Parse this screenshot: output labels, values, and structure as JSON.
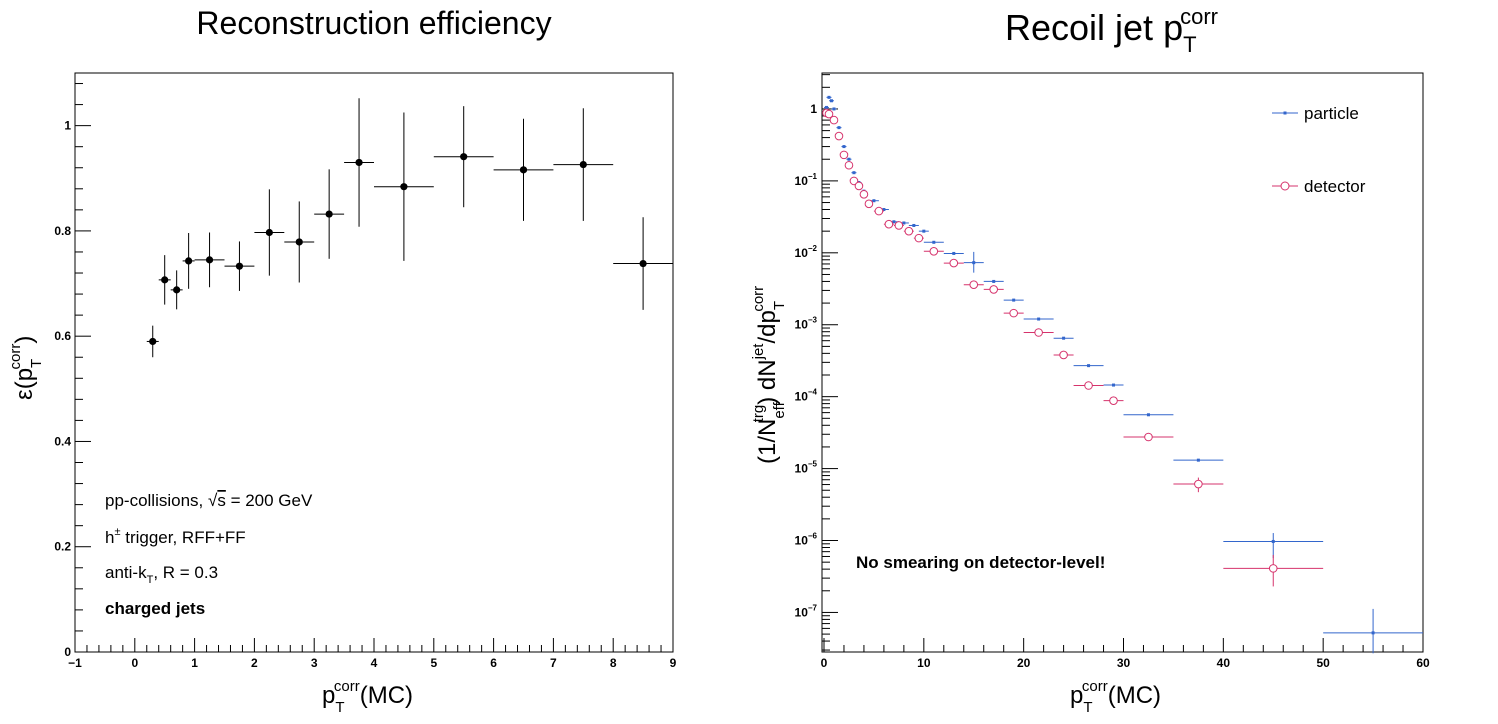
{
  "chart_data": [
    {
      "type": "scatter",
      "title": "Reconstruction efficiency",
      "ylabel": {
        "main": "ε(p",
        "sub": "T",
        "sup": "corr",
        "close": ")"
      },
      "xlabel": {
        "main": "p",
        "sub": "T",
        "sup": "corr",
        "tail": "(MC)"
      },
      "xlim": [
        -1,
        9
      ],
      "ylim": [
        0,
        1.1
      ],
      "xticks": [
        "−1",
        "0",
        "1",
        "2",
        "3",
        "4",
        "5",
        "6",
        "7",
        "8",
        "9"
      ],
      "yticks": [
        "0",
        "0.2",
        "0.4",
        "0.6",
        "0.8",
        "1"
      ],
      "annotations": {
        "line1": {
          "pre": "pp-collisions, ",
          "sqrt": "√",
          "s": "s",
          "post": " = 200 GeV"
        },
        "line2": {
          "h": "h",
          "sup": "±",
          "post": " trigger, RFF+FF"
        },
        "line3": {
          "pre": "anti-k",
          "sub": "T",
          "post": ", R = 0.3"
        },
        "line4": "charged jets"
      },
      "series": [
        {
          "color": "#000000",
          "points": [
            {
              "x": 0.3,
              "y": 0.59,
              "xerr": 0.1,
              "yerr": 0.03
            },
            {
              "x": 0.5,
              "y": 0.707,
              "xerr": 0.1,
              "yerr": 0.047
            },
            {
              "x": 0.7,
              "y": 0.688,
              "xerr": 0.1,
              "yerr": 0.037
            },
            {
              "x": 0.9,
              "y": 0.743,
              "xerr": 0.1,
              "yerr": 0.053
            },
            {
              "x": 1.25,
              "y": 0.745,
              "xerr": 0.25,
              "yerr": 0.052
            },
            {
              "x": 1.75,
              "y": 0.733,
              "xerr": 0.25,
              "yerr": 0.047
            },
            {
              "x": 2.25,
              "y": 0.797,
              "xerr": 0.25,
              "yerr": 0.082
            },
            {
              "x": 2.75,
              "y": 0.779,
              "xerr": 0.25,
              "yerr": 0.077
            },
            {
              "x": 3.25,
              "y": 0.832,
              "xerr": 0.25,
              "yerr": 0.085
            },
            {
              "x": 3.75,
              "y": 0.93,
              "xerr": 0.25,
              "yerr": 0.122
            },
            {
              "x": 4.5,
              "y": 0.884,
              "xerr": 0.5,
              "yerr": 0.141
            },
            {
              "x": 5.5,
              "y": 0.941,
              "xerr": 0.5,
              "yerr": 0.096
            },
            {
              "x": 6.5,
              "y": 0.916,
              "xerr": 0.5,
              "yerr": 0.097
            },
            {
              "x": 7.5,
              "y": 0.926,
              "xerr": 0.5,
              "yerr": 0.107
            },
            {
              "x": 8.5,
              "y": 0.738,
              "xerr": 0.5,
              "yerr": 0.088
            }
          ]
        }
      ]
    },
    {
      "type": "scatter",
      "title": {
        "main": "Recoil jet p",
        "sub": "T",
        "sup": "corr"
      },
      "ylabel": {
        "a": "(1/N",
        "a_sub": "eff",
        "a_sup": "trg",
        "b": ") dN",
        "b_sup": "jet",
        "c": "/dp",
        "c_sub": "T",
        "c_sup": "corr"
      },
      "xlabel": {
        "main": "p",
        "sub": "T",
        "sup": "corr",
        "tail": "(MC)"
      },
      "xlim": [
        -0.2,
        60
      ],
      "ylim_log10": [
        -7.55,
        0.5
      ],
      "log_y": true,
      "xticks": [
        "0",
        "10",
        "20",
        "30",
        "40",
        "50",
        "60"
      ],
      "yticks": [
        {
          "base": "1",
          "exp": ""
        },
        {
          "base": "10",
          "exp": "−1"
        },
        {
          "base": "10",
          "exp": "−2"
        },
        {
          "base": "10",
          "exp": "−3"
        },
        {
          "base": "10",
          "exp": "−4"
        },
        {
          "base": "10",
          "exp": "−5"
        },
        {
          "base": "10",
          "exp": "−6"
        },
        {
          "base": "10",
          "exp": "−7"
        }
      ],
      "legend": {
        "position": "top-right"
      },
      "annotation": "No smearing on detector-level!",
      "series": [
        {
          "name": "particle",
          "color": "#3366cc",
          "marker": "dot",
          "points": [
            {
              "x": 0.25,
              "y": 1.05,
              "xerr": 0.25
            },
            {
              "x": 0.5,
              "y": 1.45,
              "xerr": 0.25
            },
            {
              "x": 0.75,
              "y": 1.3,
              "xerr": 0.25
            },
            {
              "x": 1.0,
              "y": 1.0,
              "xerr": 0.25
            },
            {
              "x": 1.5,
              "y": 0.55,
              "xerr": 0.25
            },
            {
              "x": 2.0,
              "y": 0.3,
              "xerr": 0.25
            },
            {
              "x": 2.5,
              "y": 0.2,
              "xerr": 0.25
            },
            {
              "x": 3.0,
              "y": 0.13,
              "xerr": 0.25
            },
            {
              "x": 3.5,
              "y": 0.095,
              "xerr": 0.25
            },
            {
              "x": 4.0,
              "y": 0.072,
              "xerr": 0.25
            },
            {
              "x": 5.0,
              "y": 0.053,
              "xerr": 0.5
            },
            {
              "x": 6.0,
              "y": 0.04,
              "xerr": 0.5
            },
            {
              "x": 7.0,
              "y": 0.027,
              "xerr": 0.5
            },
            {
              "x": 8.0,
              "y": 0.026,
              "xerr": 0.5
            },
            {
              "x": 9.0,
              "y": 0.024,
              "xerr": 0.5
            },
            {
              "x": 10.0,
              "y": 0.02,
              "xerr": 0.5
            },
            {
              "x": 11.0,
              "y": 0.014,
              "xerr": 1.0
            },
            {
              "x": 13.0,
              "y": 0.0098,
              "xerr": 1.0
            },
            {
              "x": 15.0,
              "y": 0.0073,
              "xerr": 1.0,
              "yerr_up": 0.003,
              "yerr_dn": 0.002
            },
            {
              "x": 17.0,
              "y": 0.004,
              "xerr": 1.0
            },
            {
              "x": 19.0,
              "y": 0.0022,
              "xerr": 1.0
            },
            {
              "x": 21.5,
              "y": 0.0012,
              "xerr": 1.5
            },
            {
              "x": 24.0,
              "y": 0.00065,
              "xerr": 1.0
            },
            {
              "x": 26.5,
              "y": 0.00027,
              "xerr": 1.5
            },
            {
              "x": 29.0,
              "y": 0.000145,
              "xerr": 1.0
            },
            {
              "x": 32.5,
              "y": 5.6e-05,
              "xerr": 2.5
            },
            {
              "x": 37.5,
              "y": 1.31e-05,
              "xerr": 2.5
            },
            {
              "x": 45.0,
              "y": 9.7e-07,
              "xerr": 5.0,
              "yerr_up": 3e-07,
              "yerr_dn": 4e-07
            },
            {
              "x": 55.0,
              "y": 5.2e-08,
              "xerr": 5.0,
              "yerr_up": 6e-08,
              "yerr_dn": 2.5e-08
            }
          ]
        },
        {
          "name": "detector",
          "color": "#d6336c",
          "marker": "open-circle",
          "points": [
            {
              "x": 0.25,
              "y": 0.88,
              "xerr": 0.25
            },
            {
              "x": 0.5,
              "y": 0.85,
              "xerr": 0.25
            },
            {
              "x": 1.0,
              "y": 0.7,
              "xerr": 0.25
            },
            {
              "x": 1.5,
              "y": 0.42,
              "xerr": 0.25
            },
            {
              "x": 2.0,
              "y": 0.23,
              "xerr": 0.25
            },
            {
              "x": 2.5,
              "y": 0.165,
              "xerr": 0.25
            },
            {
              "x": 3.0,
              "y": 0.1,
              "xerr": 0.25
            },
            {
              "x": 3.5,
              "y": 0.085,
              "xerr": 0.25
            },
            {
              "x": 4.0,
              "y": 0.065,
              "xerr": 0.25
            },
            {
              "x": 4.5,
              "y": 0.048,
              "xerr": 0.25
            },
            {
              "x": 5.5,
              "y": 0.038,
              "xerr": 0.5
            },
            {
              "x": 6.5,
              "y": 0.025,
              "xerr": 0.5
            },
            {
              "x": 7.5,
              "y": 0.024,
              "xerr": 0.5
            },
            {
              "x": 8.5,
              "y": 0.02,
              "xerr": 0.5
            },
            {
              "x": 9.5,
              "y": 0.016,
              "xerr": 0.5
            },
            {
              "x": 11.0,
              "y": 0.0105,
              "xerr": 1.0
            },
            {
              "x": 13.0,
              "y": 0.0072,
              "xerr": 1.0
            },
            {
              "x": 15.0,
              "y": 0.0036,
              "xerr": 1.0
            },
            {
              "x": 17.0,
              "y": 0.0031,
              "xerr": 1.0
            },
            {
              "x": 19.0,
              "y": 0.00145,
              "xerr": 1.0
            },
            {
              "x": 21.5,
              "y": 0.00078,
              "xerr": 1.5
            },
            {
              "x": 24.0,
              "y": 0.00038,
              "xerr": 1.0
            },
            {
              "x": 26.5,
              "y": 0.000143,
              "xerr": 1.5
            },
            {
              "x": 29.0,
              "y": 8.8e-05,
              "xerr": 1.0
            },
            {
              "x": 32.5,
              "y": 2.75e-05,
              "xerr": 2.5
            },
            {
              "x": 37.5,
              "y": 6.1e-06,
              "xerr": 2.5,
              "yerr_up": 1.4e-06,
              "yerr_dn": 1.4e-06
            },
            {
              "x": 45.0,
              "y": 4.1e-07,
              "xerr": 5.0,
              "yerr_up": 2.2e-07,
              "yerr_dn": 1.8e-07
            }
          ]
        }
      ]
    }
  ]
}
